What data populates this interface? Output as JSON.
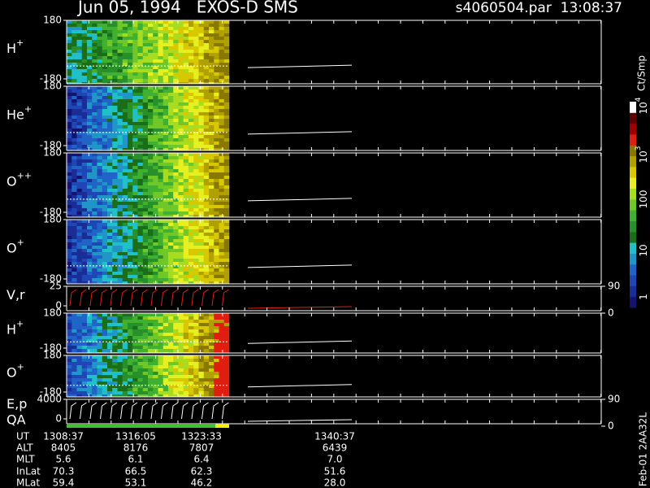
{
  "header": {
    "title": "Jun 05, 1994   EXOS-D SMS",
    "file": "s4060504.par  13:08:37"
  },
  "chart_data": [
    {
      "type": "spectrogram",
      "title": "H",
      "title_sup": "+",
      "ylim": [
        -180,
        180
      ],
      "yticks": [
        -180,
        180
      ]
    },
    {
      "type": "spectrogram",
      "title": "He",
      "title_sup": "+",
      "ylim": [
        -180,
        180
      ],
      "yticks": [
        -180,
        180
      ]
    },
    {
      "type": "spectrogram",
      "title": "O",
      "title_sup": "++",
      "ylim": [
        -180,
        180
      ],
      "yticks": [
        -180,
        180
      ]
    },
    {
      "type": "spectrogram",
      "title": "O",
      "title_sup": "+",
      "ylim": [
        -180,
        180
      ],
      "yticks": [
        -180,
        180
      ]
    },
    {
      "type": "sawtooth",
      "title": "V,r",
      "ylim": [
        0,
        25
      ],
      "yticks": [
        0,
        25
      ],
      "y2lim": [
        0,
        90
      ],
      "y2ticks": [
        0,
        90
      ],
      "color": "#e02010"
    },
    {
      "type": "spectrogram",
      "title": "H",
      "title_sup": "+",
      "ylim": [
        -180,
        180
      ],
      "yticks": [
        -180,
        180
      ]
    },
    {
      "type": "spectrogram",
      "title": "O",
      "title_sup": "+",
      "ylim": [
        -180,
        180
      ],
      "yticks": [
        -180,
        180
      ]
    },
    {
      "type": "sawtooth",
      "title": "E,p",
      "ylim": [
        0,
        4000
      ],
      "yticks": [
        0,
        4000
      ],
      "y2lim": [
        0,
        90
      ],
      "y2ticks": [
        0,
        90
      ],
      "color": "#ffffff"
    }
  ],
  "qa_label": "QA",
  "colorbar": {
    "title": "Ct/Smp",
    "ticks": [
      {
        "text": "10",
        "sup": "4"
      },
      {
        "text": "10",
        "sup": "3"
      },
      {
        "text": "100"
      },
      {
        "text": "10"
      },
      {
        "text": "1"
      }
    ]
  },
  "footer": {
    "rows": [
      {
        "label": "UT",
        "values": [
          "1308:37",
          "1316:05",
          "1323:33",
          "1340:37"
        ]
      },
      {
        "label": "ALT",
        "values": [
          "8405",
          "8176",
          "7807",
          "6439"
        ]
      },
      {
        "label": "MLT",
        "values": [
          "5.6",
          "6.1",
          "6.4",
          "7.0"
        ]
      },
      {
        "label": "InLat",
        "values": [
          "70.3",
          "66.5",
          "62.3",
          "51.6"
        ]
      },
      {
        "label": "MLat",
        "values": [
          "59.4",
          "53.1",
          "46.2",
          "28.0"
        ]
      }
    ]
  },
  "stamp": "Feb-01 2AA32L"
}
